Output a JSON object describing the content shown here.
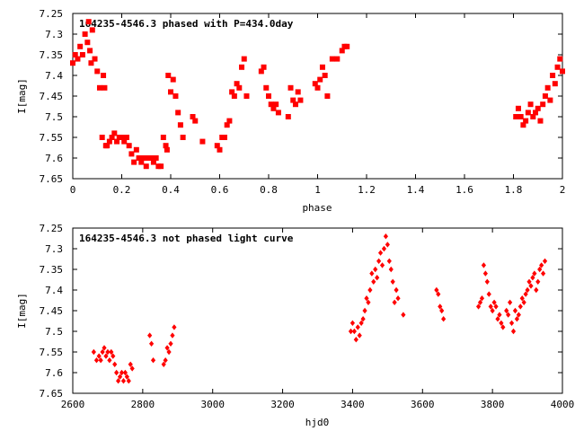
{
  "chart_data": [
    {
      "type": "scatter",
      "title": "164235-4546.3 phased with P=434.0day",
      "xlabel": "phase",
      "ylabel": "I[mag]",
      "xlim": [
        0,
        2
      ],
      "ylim": [
        7.25,
        7.65
      ],
      "y_inverted": true,
      "x_ticks": [
        "0",
        "0.2",
        "0.4",
        "0.6",
        "0.8",
        "1",
        "1.2",
        "1.4",
        "1.6",
        "1.8",
        "2"
      ],
      "y_ticks": [
        "7.25",
        "7.3",
        "7.35",
        "7.4",
        "7.45",
        "7.5",
        "7.55",
        "7.6",
        "7.65"
      ],
      "marker": "filled-square",
      "color": "#ff0000",
      "grid": false,
      "series": [
        {
          "x": [
            0.0,
            0.01,
            0.02,
            0.03,
            0.04,
            0.05,
            0.06,
            0.065,
            0.07,
            0.075,
            0.08,
            0.09,
            0.1,
            0.11,
            0.12,
            0.125,
            0.13,
            0.135,
            0.14,
            0.15,
            0.16,
            0.17,
            0.18,
            0.19,
            0.2,
            0.21,
            0.22,
            0.23,
            0.24,
            0.25,
            0.26,
            0.27,
            0.28,
            0.29,
            0.3,
            0.31,
            0.32,
            0.33,
            0.34,
            0.35,
            0.36,
            0.37,
            0.38,
            0.385,
            0.39,
            0.4,
            0.41,
            0.42,
            0.43,
            0.44,
            0.45,
            0.49,
            0.5,
            0.53,
            0.59,
            0.6,
            0.61,
            0.62,
            0.63,
            0.64,
            0.65,
            0.66,
            0.67,
            0.68,
            0.69,
            0.7,
            0.71,
            0.77,
            0.78,
            0.79,
            0.8,
            0.81,
            0.82,
            0.83,
            0.84,
            0.88,
            0.89,
            0.9,
            0.91,
            0.92,
            0.93,
            0.99,
            1.0,
            1.01,
            1.02,
            1.03,
            1.04,
            1.06,
            1.08,
            1.1,
            1.11,
            1.12,
            1.81,
            1.82,
            1.83,
            1.84,
            1.85,
            1.86,
            1.87,
            1.88,
            1.89,
            1.9,
            1.91,
            1.92,
            1.93,
            1.94,
            1.95,
            1.96,
            1.97,
            1.98,
            1.99,
            2.0
          ],
          "y": [
            7.37,
            7.35,
            7.36,
            7.33,
            7.35,
            7.3,
            7.32,
            7.27,
            7.34,
            7.37,
            7.29,
            7.36,
            7.39,
            7.43,
            7.55,
            7.4,
            7.43,
            7.57,
            7.57,
            7.56,
            7.55,
            7.54,
            7.56,
            7.55,
            7.55,
            7.56,
            7.55,
            7.57,
            7.59,
            7.61,
            7.58,
            7.6,
            7.61,
            7.6,
            7.62,
            7.6,
            7.6,
            7.61,
            7.6,
            7.62,
            7.62,
            7.55,
            7.57,
            7.58,
            7.4,
            7.44,
            7.41,
            7.45,
            7.49,
            7.52,
            7.55,
            7.5,
            7.51,
            7.56,
            7.57,
            7.58,
            7.55,
            7.55,
            7.52,
            7.51,
            7.44,
            7.45,
            7.42,
            7.43,
            7.38,
            7.36,
            7.45,
            7.39,
            7.38,
            7.43,
            7.45,
            7.47,
            7.48,
            7.47,
            7.49,
            7.5,
            7.43,
            7.46,
            7.47,
            7.44,
            7.46,
            7.42,
            7.43,
            7.41,
            7.38,
            7.4,
            7.45,
            7.36,
            7.36,
            7.34,
            7.33,
            7.33,
            7.5,
            7.48,
            7.5,
            7.52,
            7.51,
            7.49,
            7.47,
            7.5,
            7.49,
            7.48,
            7.51,
            7.47,
            7.45,
            7.43,
            7.46,
            7.4,
            7.42,
            7.38,
            7.36,
            7.39
          ]
        }
      ]
    },
    {
      "type": "scatter",
      "title": "164235-4546.3 not phased light curve",
      "xlabel": "hjd0",
      "ylabel": "I[mag]",
      "xlim": [
        2600,
        4000
      ],
      "ylim": [
        7.25,
        7.65
      ],
      "y_inverted": true,
      "x_ticks": [
        "2600",
        "2800",
        "3000",
        "3200",
        "3400",
        "3600",
        "3800",
        "4000"
      ],
      "y_ticks": [
        "7.25",
        "7.3",
        "7.35",
        "7.4",
        "7.45",
        "7.5",
        "7.55",
        "7.6",
        "7.65"
      ],
      "marker": "filled-diamond",
      "color": "#ff0000",
      "grid": false,
      "series": [
        {
          "x": [
            2660,
            2668,
            2675,
            2680,
            2685,
            2690,
            2695,
            2700,
            2705,
            2710,
            2715,
            2720,
            2725,
            2730,
            2735,
            2740,
            2745,
            2750,
            2755,
            2760,
            2765,
            2770,
            2820,
            2825,
            2830,
            2860,
            2865,
            2870,
            2875,
            2880,
            2885,
            2890,
            3395,
            3400,
            3405,
            3410,
            3415,
            3420,
            3425,
            3430,
            3435,
            3440,
            3445,
            3450,
            3455,
            3460,
            3465,
            3470,
            3475,
            3480,
            3485,
            3490,
            3495,
            3500,
            3505,
            3510,
            3515,
            3520,
            3525,
            3530,
            3545,
            3640,
            3645,
            3650,
            3655,
            3660,
            3760,
            3765,
            3770,
            3775,
            3780,
            3785,
            3790,
            3795,
            3800,
            3805,
            3810,
            3815,
            3820,
            3825,
            3830,
            3840,
            3845,
            3850,
            3855,
            3860,
            3865,
            3870,
            3875,
            3880,
            3885,
            3890,
            3895,
            3900,
            3905,
            3910,
            3915,
            3920,
            3925,
            3930,
            3935,
            3940,
            3945,
            3950
          ],
          "y": [
            7.55,
            7.57,
            7.56,
            7.57,
            7.55,
            7.54,
            7.56,
            7.55,
            7.57,
            7.55,
            7.56,
            7.58,
            7.6,
            7.62,
            7.61,
            7.6,
            7.62,
            7.6,
            7.61,
            7.62,
            7.58,
            7.59,
            7.51,
            7.53,
            7.57,
            7.58,
            7.57,
            7.54,
            7.55,
            7.53,
            7.51,
            7.49,
            7.5,
            7.48,
            7.5,
            7.52,
            7.49,
            7.51,
            7.48,
            7.47,
            7.45,
            7.42,
            7.43,
            7.4,
            7.36,
            7.38,
            7.35,
            7.37,
            7.33,
            7.31,
            7.34,
            7.3,
            7.27,
            7.29,
            7.33,
            7.35,
            7.38,
            7.43,
            7.4,
            7.42,
            7.46,
            7.4,
            7.41,
            7.44,
            7.45,
            7.47,
            7.44,
            7.43,
            7.42,
            7.34,
            7.36,
            7.38,
            7.41,
            7.44,
            7.45,
            7.43,
            7.44,
            7.47,
            7.46,
            7.48,
            7.49,
            7.45,
            7.46,
            7.43,
            7.48,
            7.5,
            7.45,
            7.47,
            7.46,
            7.44,
            7.42,
            7.43,
            7.41,
            7.4,
            7.38,
            7.39,
            7.37,
            7.36,
            7.4,
            7.38,
            7.35,
            7.34,
            7.36,
            7.33
          ]
        }
      ]
    }
  ]
}
